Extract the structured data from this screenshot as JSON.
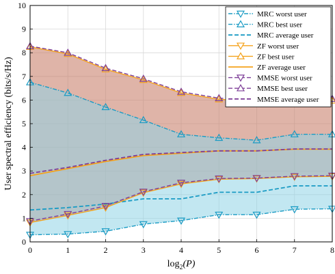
{
  "chart_data": {
    "type": "line",
    "title": "",
    "xlabel": "log₂(P)",
    "xlabel_parts": {
      "main": "log",
      "sub": "2",
      "arg": "(P)"
    },
    "ylabel": "User spectral efficiency (bits/s/Hz)",
    "xlim": [
      0,
      8
    ],
    "ylim": [
      0,
      10
    ],
    "x": [
      0,
      1,
      2,
      3,
      4,
      5,
      6,
      7,
      8
    ],
    "xticks": [
      "0",
      "1",
      "2",
      "3",
      "4",
      "5",
      "6",
      "7",
      "8"
    ],
    "yticks": [
      "0",
      "1",
      "2",
      "3",
      "4",
      "5",
      "6",
      "7",
      "8",
      "9",
      "10"
    ],
    "grid": true,
    "legend_position": "top-right",
    "series": [
      {
        "name": "MRC worst user",
        "style": "dashdot",
        "marker": "triangle-down",
        "color": "#1a9bc4",
        "values": [
          0.3,
          0.33,
          0.45,
          0.75,
          0.9,
          1.15,
          1.15,
          1.38,
          1.4
        ]
      },
      {
        "name": "MRC best user",
        "style": "dashdot",
        "marker": "triangle-up",
        "color": "#1a9bc4",
        "values": [
          6.75,
          6.3,
          5.7,
          5.15,
          4.55,
          4.4,
          4.3,
          4.55,
          4.55
        ]
      },
      {
        "name": "MRC average user",
        "style": "dashed",
        "marker": "none",
        "color": "#1a9bc4",
        "values": [
          1.35,
          1.45,
          1.6,
          1.82,
          1.82,
          2.1,
          2.1,
          2.37,
          2.37
        ]
      },
      {
        "name": "ZF worst user",
        "style": "solid",
        "marker": "triangle-down",
        "color": "#f4a21b",
        "values": [
          0.82,
          1.12,
          1.45,
          2.08,
          2.45,
          2.65,
          2.68,
          2.75,
          2.77
        ]
      },
      {
        "name": "ZF best user",
        "style": "solid",
        "marker": "triangle-up",
        "color": "#f4a21b",
        "values": [
          8.25,
          7.95,
          7.3,
          6.85,
          6.3,
          6.03,
          5.95,
          5.98,
          5.98
        ]
      },
      {
        "name": "ZF average user",
        "style": "solid",
        "marker": "none",
        "color": "#f4a21b",
        "values": [
          2.8,
          3.1,
          3.4,
          3.65,
          3.75,
          3.85,
          3.85,
          3.92,
          3.92
        ]
      },
      {
        "name": "MMSE worst user",
        "style": "dashed",
        "marker": "triangle-down",
        "color": "#7e3f98",
        "values": [
          0.88,
          1.18,
          1.52,
          2.12,
          2.5,
          2.68,
          2.7,
          2.78,
          2.8
        ]
      },
      {
        "name": "MMSE best user",
        "style": "dashed",
        "marker": "triangle-up",
        "color": "#7e3f98",
        "values": [
          8.28,
          8.0,
          7.35,
          6.9,
          6.35,
          6.08,
          6.0,
          6.05,
          6.05
        ]
      },
      {
        "name": "MMSE average user",
        "style": "dashed",
        "marker": "none",
        "color": "#7e3f98",
        "values": [
          2.9,
          3.15,
          3.45,
          3.7,
          3.78,
          3.85,
          3.85,
          3.93,
          3.93
        ]
      }
    ],
    "colors": {
      "mrc_fill": "#8fd3e6",
      "zf_mmse_fill": "#c9826e",
      "grid": "#d8d8d8"
    }
  }
}
